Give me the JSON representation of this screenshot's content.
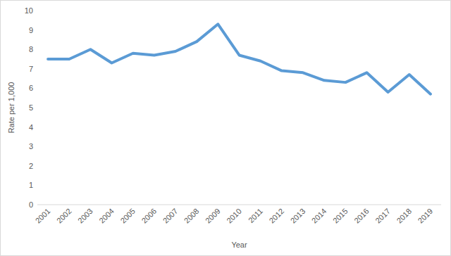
{
  "chart_data": {
    "type": "line",
    "x_label": "Year",
    "y_label": "Rate per 1,000",
    "categories": [
      "2001",
      "2002",
      "2003",
      "2004",
      "2005",
      "2006",
      "2007",
      "2008",
      "2009",
      "2010",
      "2011",
      "2012",
      "2013",
      "2014",
      "2015",
      "2016",
      "2017",
      "2018",
      "2019"
    ],
    "values": [
      7.5,
      7.5,
      8.0,
      7.3,
      7.8,
      7.7,
      7.9,
      8.4,
      9.3,
      7.7,
      7.4,
      6.9,
      6.8,
      6.4,
      6.3,
      6.8,
      5.8,
      6.7,
      5.7
    ],
    "color": "#5b9bd5",
    "ylim": [
      0,
      10
    ],
    "yticks": [
      0,
      1,
      2,
      3,
      4,
      5,
      6,
      7,
      8,
      9,
      10
    ],
    "grid": false
  }
}
